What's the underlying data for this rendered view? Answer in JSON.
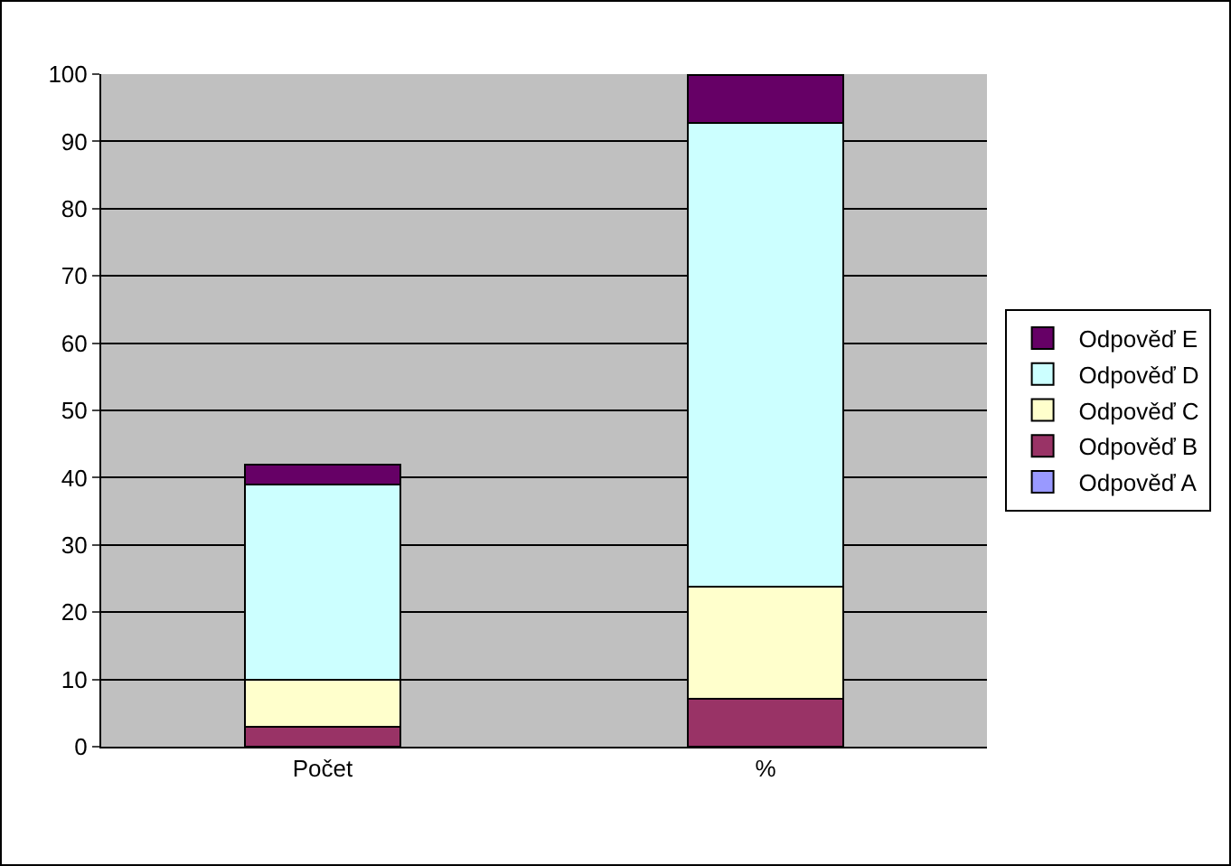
{
  "chart_data": {
    "type": "bar",
    "stacked": true,
    "categories": [
      "Počet",
      "%"
    ],
    "series": [
      {
        "name": "Odpověď A",
        "color": "#9999ff",
        "values": [
          0,
          0
        ]
      },
      {
        "name": "Odpověď B",
        "color": "#993366",
        "values": [
          3,
          7.1
        ]
      },
      {
        "name": "Odpověď C",
        "color": "#ffffcc",
        "values": [
          7,
          16.7
        ]
      },
      {
        "name": "Odpověď D",
        "color": "#ccffff",
        "values": [
          29,
          69
        ]
      },
      {
        "name": "Odpověď E",
        "color": "#660066",
        "values": [
          3,
          7.1
        ]
      }
    ],
    "ylim": [
      0,
      100
    ],
    "yticks": [
      0,
      10,
      20,
      30,
      40,
      50,
      60,
      70,
      80,
      90,
      100
    ],
    "grid": "y",
    "legend": "right"
  }
}
